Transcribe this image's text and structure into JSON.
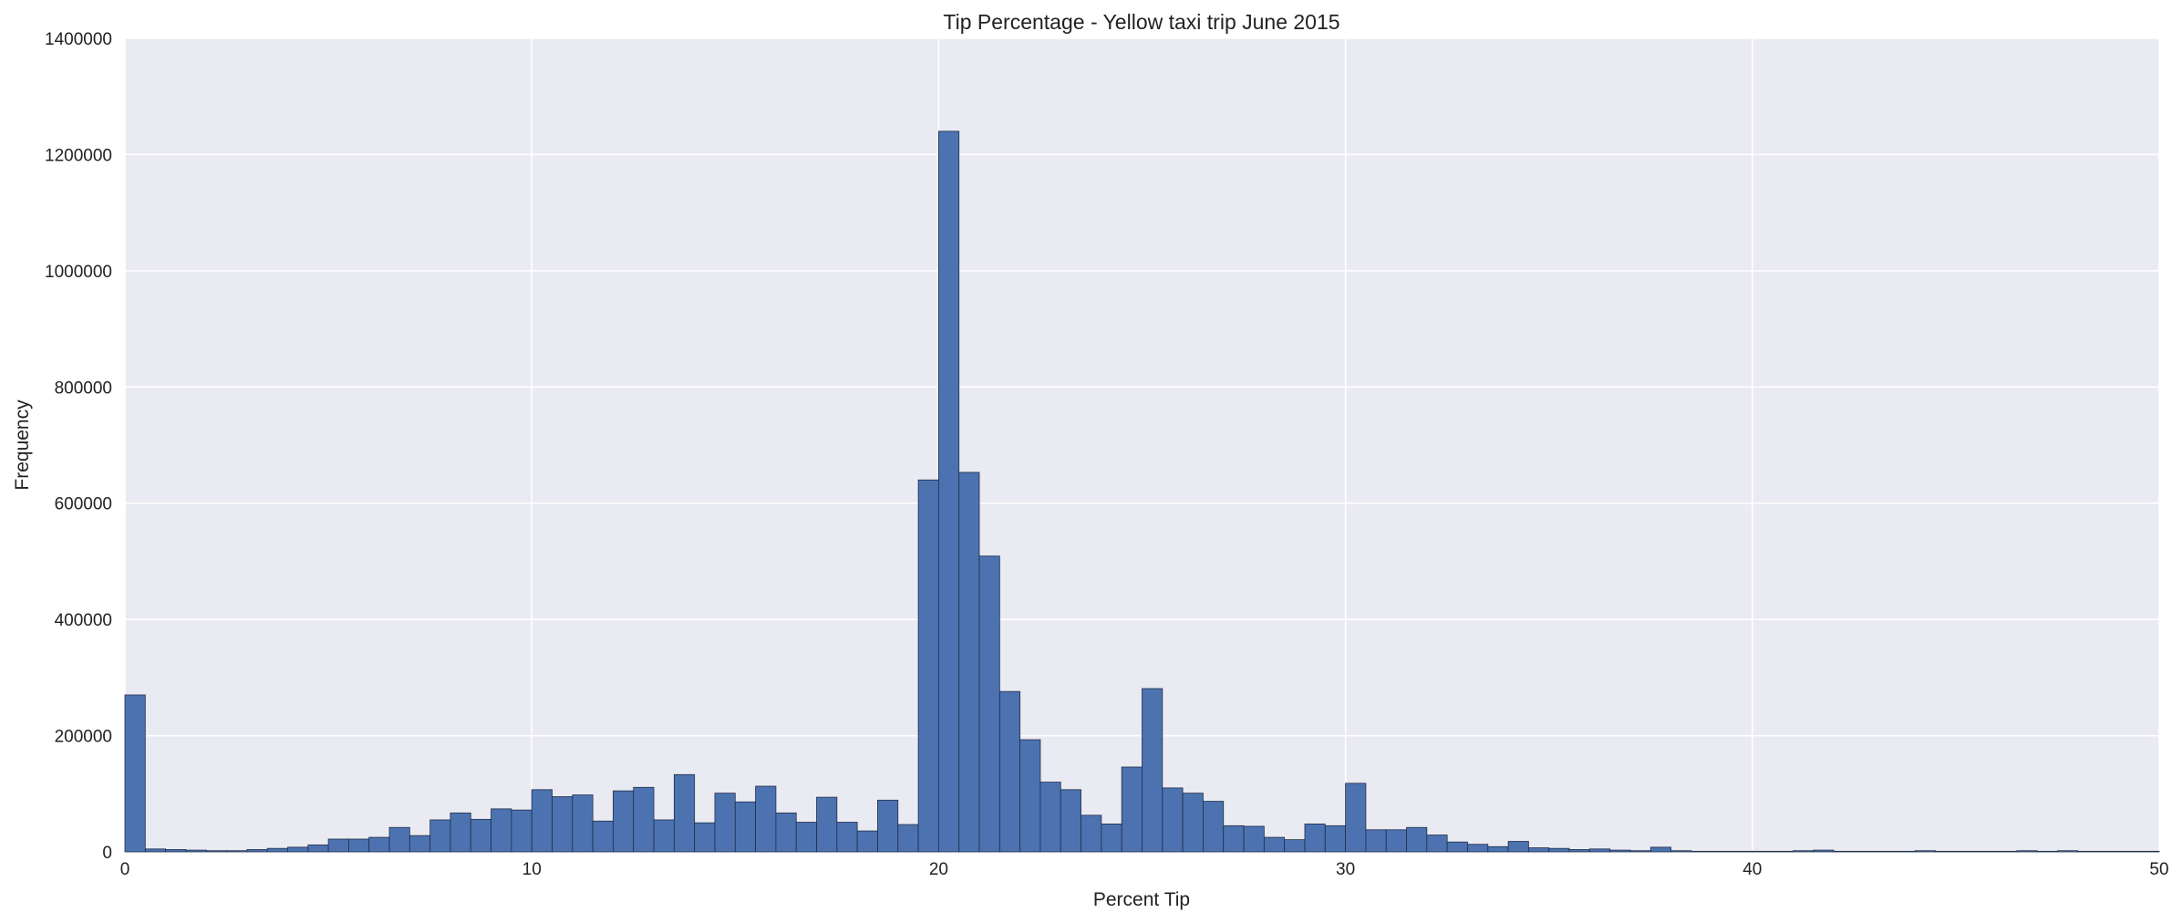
{
  "chart_data": {
    "type": "bar",
    "title": "Tip Percentage - Yellow taxi trip June 2015",
    "xlabel": "Percent Tip",
    "ylabel": "Frequency",
    "xlim": [
      0,
      50
    ],
    "ylim": [
      0,
      1400000
    ],
    "x_ticks": [
      0,
      10,
      20,
      30,
      40,
      50
    ],
    "y_ticks": [
      0,
      200000,
      400000,
      600000,
      800000,
      1000000,
      1200000,
      1400000
    ],
    "grid": true,
    "bar_color": "#4c72b0",
    "bin_edges": [
      0,
      0.5,
      1,
      1.5,
      2,
      2.5,
      3,
      3.5,
      4,
      4.5,
      5,
      5.5,
      6,
      6.5,
      7,
      7.5,
      8,
      8.5,
      9,
      9.5,
      10,
      10.5,
      11,
      11.5,
      12,
      12.5,
      13,
      13.5,
      14,
      14.5,
      15,
      15.5,
      16,
      16.5,
      17,
      17.5,
      18,
      18.5,
      19,
      19.5,
      20,
      20.5,
      21,
      21.5,
      22,
      22.5,
      23,
      23.5,
      24,
      24.5,
      25,
      25.5,
      26,
      26.5,
      27,
      27.5,
      28,
      28.5,
      29,
      29.5,
      30,
      30.5,
      31,
      31.5,
      32,
      32.5,
      33,
      33.5,
      34,
      34.5,
      35,
      35.5,
      36,
      36.5,
      37,
      37.5,
      38,
      38.5,
      39,
      39.5,
      40,
      40.5,
      41,
      41.5,
      42,
      42.5,
      43,
      43.5,
      44,
      44.5,
      45,
      45.5,
      46,
      46.5,
      47,
      47.5,
      48,
      48.5,
      49,
      49.5,
      50
    ],
    "values": [
      270000,
      5000,
      4000,
      3000,
      2000,
      2000,
      4000,
      6000,
      8000,
      12000,
      22000,
      22000,
      25000,
      42000,
      28000,
      55000,
      67000,
      56000,
      74000,
      72000,
      107000,
      95000,
      98000,
      53000,
      105000,
      111000,
      55000,
      133000,
      50000,
      101000,
      86000,
      113000,
      67000,
      51000,
      94000,
      51000,
      36000,
      89000,
      47000,
      640000,
      1240000,
      653000,
      509000,
      276000,
      193000,
      120000,
      107000,
      63000,
      48000,
      146000,
      281000,
      110000,
      101000,
      87000,
      45000,
      44000,
      25000,
      21000,
      48000,
      45000,
      118000,
      38000,
      38000,
      42000,
      29000,
      17000,
      13000,
      9000,
      18000,
      7000,
      6000,
      4000,
      5000,
      3000,
      2000,
      8000,
      2000,
      1000,
      1000,
      1000,
      1000,
      1000,
      2000,
      3000,
      1000,
      1000,
      1000,
      1000,
      2000,
      1000,
      1000,
      1000,
      1000,
      2000,
      1000,
      2000,
      1000,
      1000,
      1000,
      1000
    ]
  }
}
